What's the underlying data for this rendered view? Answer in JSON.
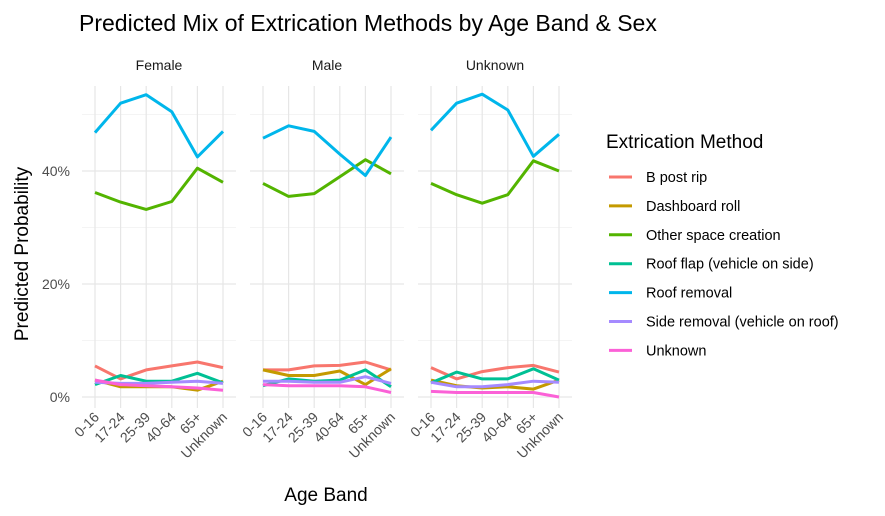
{
  "chart_data": {
    "type": "line",
    "title": "Predicted Mix of Extrication Methods by Age Band & Sex",
    "xlabel": "Age Band",
    "ylabel": "Predicted Probability",
    "categories": [
      "0-16",
      "17-24",
      "25-39",
      "40-64",
      "65+",
      "Unknown"
    ],
    "y_ticks": [
      0,
      20,
      40
    ],
    "y_tick_labels": [
      "0%",
      "20%",
      "40%"
    ],
    "ylim": [
      -1,
      55
    ],
    "grid": true,
    "legend_position": "right",
    "legend_title": "Extrication Method",
    "facets": [
      {
        "label": "Female",
        "series": [
          {
            "name": "B post rip",
            "values": [
              5.5,
              3.2,
              4.8,
              5.5,
              6.2,
              5.2
            ]
          },
          {
            "name": "Dashboard roll",
            "values": [
              3.0,
              1.8,
              1.8,
              1.8,
              1.2,
              2.8
            ]
          },
          {
            "name": "Other space creation",
            "values": [
              36.2,
              34.5,
              33.2,
              34.6,
              40.5,
              38.0
            ]
          },
          {
            "name": "Roof flap (vehicle on side)",
            "values": [
              2.2,
              3.8,
              2.8,
              2.8,
              4.2,
              2.5
            ]
          },
          {
            "name": "Roof removal",
            "values": [
              46.8,
              52.0,
              53.5,
              50.5,
              42.5,
              47.0
            ]
          },
          {
            "name": "Side removal (vehicle on roof)",
            "values": [
              2.6,
              2.4,
              2.4,
              2.6,
              2.8,
              2.4
            ]
          },
          {
            "name": "Unknown",
            "values": [
              3.0,
              2.2,
              2.0,
              1.8,
              1.6,
              1.2
            ]
          }
        ]
      },
      {
        "label": "Male",
        "series": [
          {
            "name": "B post rip",
            "values": [
              4.8,
              4.8,
              5.5,
              5.6,
              6.2,
              4.8
            ]
          },
          {
            "name": "Dashboard roll",
            "values": [
              4.8,
              3.8,
              3.8,
              4.6,
              2.2,
              5.0
            ]
          },
          {
            "name": "Other space creation",
            "values": [
              37.8,
              35.5,
              36.0,
              39.0,
              42.0,
              39.5
            ]
          },
          {
            "name": "Roof flap (vehicle on side)",
            "values": [
              2.0,
              3.2,
              2.8,
              3.0,
              4.8,
              1.8
            ]
          },
          {
            "name": "Roof removal",
            "values": [
              45.8,
              48.0,
              47.0,
              43.0,
              39.2,
              46.0
            ]
          },
          {
            "name": "Side removal (vehicle on roof)",
            "values": [
              2.8,
              2.8,
              2.6,
              2.6,
              3.6,
              2.4
            ]
          },
          {
            "name": "Unknown",
            "values": [
              2.2,
              2.0,
              2.0,
              2.0,
              1.8,
              0.8
            ]
          }
        ]
      },
      {
        "label": "Unknown",
        "series": [
          {
            "name": "B post rip",
            "values": [
              5.2,
              3.2,
              4.5,
              5.2,
              5.6,
              4.4
            ]
          },
          {
            "name": "Dashboard roll",
            "values": [
              3.0,
              2.0,
              1.6,
              1.8,
              1.4,
              3.0
            ]
          },
          {
            "name": "Other space creation",
            "values": [
              37.8,
              35.8,
              34.3,
              35.8,
              41.8,
              40.0
            ]
          },
          {
            "name": "Roof flap (vehicle on side)",
            "values": [
              2.5,
              4.4,
              3.2,
              3.2,
              5.0,
              3.0
            ]
          },
          {
            "name": "Roof removal",
            "values": [
              47.2,
              52.0,
              53.6,
              50.8,
              42.6,
              46.5
            ]
          },
          {
            "name": "Side removal (vehicle on roof)",
            "values": [
              2.6,
              1.8,
              1.8,
              2.2,
              2.8,
              2.6
            ]
          },
          {
            "name": "Unknown",
            "values": [
              1.0,
              0.8,
              0.8,
              0.8,
              0.8,
              0.0
            ]
          }
        ]
      }
    ],
    "colors": {
      "B post rip": "#F8766D",
      "Dashboard roll": "#C49A00",
      "Other space creation": "#53B400",
      "Roof flap (vehicle on side)": "#00C094",
      "Roof removal": "#00B6EB",
      "Side removal (vehicle on roof)": "#A58AFF",
      "Unknown": "#FB61D7"
    }
  }
}
